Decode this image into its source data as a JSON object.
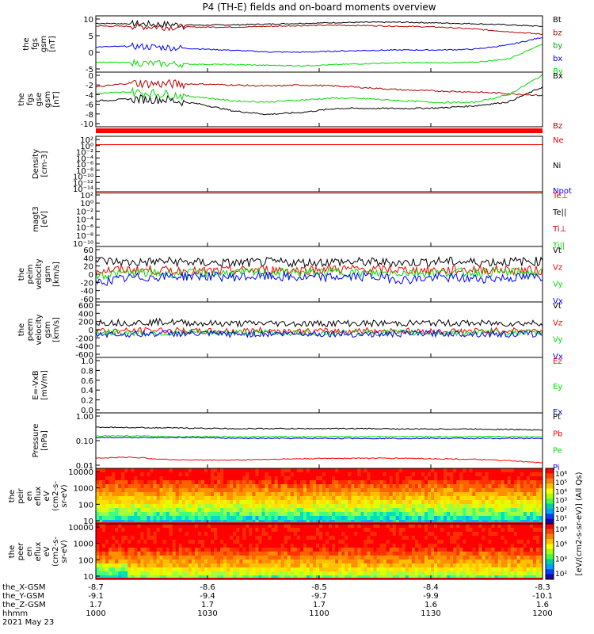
{
  "title": "P4 (TH-E) fields and on-board moments overview",
  "colors": {
    "black": "#000000",
    "red": "#ff0000",
    "darkred": "#b00000",
    "green": "#00dd00",
    "blue": "#0000ff"
  },
  "chart_data": [
    {
      "id": "fgs_gsm",
      "type": "line",
      "ylabel_lines": [
        "the",
        "fgs",
        "gsm",
        "[nT]"
      ],
      "ylim": [
        -5,
        10
      ],
      "yticks": [
        "10",
        "5",
        "0",
        "-5"
      ],
      "series": [
        {
          "name": "Bt",
          "color": "#000000",
          "values": [
            8.0,
            7.9,
            7.7,
            7.5,
            7.6,
            7.8,
            8.0,
            8.2,
            8.3,
            8.3,
            8.1,
            7.9,
            7.6,
            7.2
          ]
        },
        {
          "name": "bz",
          "color": "#b00000",
          "values": [
            7.3,
            7.2,
            7.0,
            7.0,
            7.0,
            7.2,
            7.4,
            7.5,
            7.4,
            7.2,
            7.0,
            6.5,
            5.8,
            5.1
          ]
        },
        {
          "name": "by",
          "color": "#0000ff",
          "values": [
            1.7,
            1.9,
            1.6,
            1.2,
            0.8,
            0.4,
            0.3,
            0.6,
            0.8,
            0.9,
            0.9,
            1.1,
            2.2,
            4.3
          ]
        },
        {
          "name": "bx",
          "color": "#ff0000",
          "values": [
            null
          ]
        },
        {
          "name": "By",
          "color": "#00dd00",
          "values": [
            -2.3,
            -2.5,
            -2.8,
            -2.9,
            -3.0,
            -3.2,
            -3.3,
            -3.0,
            -2.7,
            -2.5,
            -2.5,
            -2.4,
            -1.5,
            2.5
          ]
        }
      ]
    },
    {
      "id": "fgs_gse",
      "type": "line",
      "ylabel_lines": [
        "the",
        "fgs",
        "gse",
        "gsm",
        "[nT]"
      ],
      "ylim": [
        -11,
        0
      ],
      "yticks": [
        "0",
        "-2",
        "-4",
        "-6",
        "-8",
        "-10"
      ],
      "series": [
        {
          "name": "Bx",
          "color": "#000000",
          "values": [
            -5.8,
            -5.4,
            -5.5,
            -6.4,
            -7.8,
            -8.5,
            -8.1,
            -7.3,
            -7.3,
            -7.3,
            -7.2,
            -6.8,
            -6.0,
            -3.0
          ]
        },
        {
          "name": "Bz",
          "color": "#b00000",
          "values": [
            -3.0,
            -2.2,
            -2.4,
            -2.4,
            -2.6,
            -2.8,
            -2.6,
            -2.8,
            -3.2,
            -3.6,
            -3.8,
            -4.0,
            -4.3,
            -4.7
          ]
        },
        {
          "name": "By",
          "color": "#00dd00",
          "values": [
            -4.3,
            -4.0,
            -4.4,
            -5.0,
            -5.8,
            -6.0,
            -5.6,
            -5.2,
            -5.4,
            -5.8,
            -6.1,
            -6.1,
            -4.6,
            -0.6
          ]
        }
      ]
    },
    {
      "id": "mode_bar",
      "type": "bar",
      "color": "#ff0000"
    },
    {
      "id": "density",
      "type": "line",
      "ylabel_lines": [
        "Density",
        "[cm-3]"
      ],
      "scale": "log",
      "ylim": [
        1e-16,
        100.0
      ],
      "yticks": [
        "10²",
        "10⁰",
        "10⁻²",
        "10⁻⁴",
        "10⁻⁶",
        "10⁻⁸",
        "10⁻¹⁰",
        "10⁻¹²",
        "10⁻¹⁴"
      ],
      "legend": [
        {
          "name": "Ne",
          "color": "#ff0000"
        },
        {
          "name": "Ni",
          "color": "#000000"
        },
        {
          "name": "Npot",
          "color": "#0000ff"
        }
      ],
      "series": [
        {
          "name": "Ne",
          "color": "#ff0000",
          "values": [
            0.2,
            0.2,
            0.2,
            0.2,
            0.2,
            0.2,
            0.2,
            0.2,
            0.2,
            0.2,
            0.2,
            0.2,
            0.2,
            0.2
          ]
        }
      ]
    },
    {
      "id": "temperature",
      "type": "line",
      "ylabel_lines": [
        "magt3",
        "[eV]"
      ],
      "scale": "log",
      "ylim": [
        1e-10,
        100.0
      ],
      "yticks": [
        "10²",
        "10⁰",
        "10⁻²",
        "10⁻⁴",
        "10⁻⁶",
        "10⁻⁸",
        "10⁻¹⁰"
      ],
      "legend": [
        {
          "name": "Te⊥",
          "color": "#ff0000"
        },
        {
          "name": "Te||",
          "color": "#000000"
        },
        {
          "name": "Ti⊥",
          "color": "#b00000"
        },
        {
          "name": "Ti||",
          "color": "#00dd00"
        }
      ],
      "series": [
        {
          "name": "Te⊥",
          "color": "#ff0000",
          "values": [
            50,
            50,
            50,
            50,
            50,
            50,
            50,
            50,
            50,
            50,
            50,
            50,
            50,
            50
          ]
        }
      ]
    },
    {
      "id": "peim_velocity",
      "type": "line",
      "ylabel_lines": [
        "the",
        "peim",
        "velocity",
        "gsm",
        "[km/s]"
      ],
      "ylim": [
        -60,
        60
      ],
      "yticks": [
        "60",
        "40",
        "20",
        "0",
        "-20",
        "-40",
        "-60"
      ],
      "series": [
        {
          "name": "Vt",
          "color": "#000000",
          "values": [
            30,
            25,
            28,
            25,
            24,
            26,
            25,
            27,
            26,
            25,
            28,
            26,
            27,
            28
          ]
        },
        {
          "name": "Vz",
          "color": "#ff0000",
          "values": [
            8,
            10,
            8,
            6,
            8,
            10,
            9,
            12,
            10,
            9,
            8,
            10,
            9,
            8
          ]
        },
        {
          "name": "Vy",
          "color": "#00dd00",
          "values": [
            -2,
            3,
            2,
            1,
            3,
            4,
            3,
            5,
            2,
            4,
            3,
            5,
            4,
            2
          ]
        },
        {
          "name": "Vx",
          "color": "#0000ff",
          "values": [
            -18,
            -8,
            -5,
            -4,
            -6,
            -5,
            -8,
            -6,
            -5,
            -12,
            -7,
            -10,
            -8,
            -6
          ]
        }
      ]
    },
    {
      "id": "peem_velocity",
      "type": "line",
      "ylabel_lines": [
        "the",
        "peem",
        "velocity",
        "gsm",
        "[km/s]"
      ],
      "ylim": [
        -600,
        600
      ],
      "yticks": [
        "600",
        "400",
        "200",
        "0",
        "-200",
        "-400",
        "-600"
      ],
      "series": [
        {
          "name": "Vt",
          "color": "#000000",
          "values": [
            160,
            150,
            170,
            140,
            130,
            140,
            130,
            140,
            135,
            140,
            145,
            140,
            135,
            150
          ]
        },
        {
          "name": "Vz",
          "color": "#ff0000",
          "values": [
            -20,
            -30,
            -10,
            -40,
            -30,
            -20,
            -40,
            -30,
            -20,
            -30,
            -40,
            -30,
            -20,
            -30
          ]
        },
        {
          "name": "Vy",
          "color": "#00dd00",
          "values": [
            -60,
            -70,
            -80,
            -60,
            -70,
            -60,
            -70,
            -80,
            -60,
            -70,
            -60,
            -70,
            -60,
            -70
          ]
        },
        {
          "name": "Vx",
          "color": "#0000ff",
          "values": [
            -90,
            -100,
            -80,
            -90,
            -100,
            -90,
            -80,
            -90,
            -100,
            -90,
            -80,
            -90,
            -100,
            -90
          ]
        }
      ]
    },
    {
      "id": "efield",
      "type": "line",
      "ylabel_lines": [
        "E=-VxB",
        "[mV/m]"
      ],
      "ylim": [
        0,
        1
      ],
      "yticks": [
        "1.0",
        "0.8",
        "0.6",
        "0.4",
        "0.2",
        "0.0"
      ],
      "legend": [
        {
          "name": "Ez",
          "color": "#ff0000"
        },
        {
          "name": "Ey",
          "color": "#00dd00"
        },
        {
          "name": "Ex",
          "color": "#0000ff"
        }
      ],
      "series": []
    },
    {
      "id": "pressure",
      "type": "line",
      "ylabel_lines": [
        "Pressure",
        "[nPa]"
      ],
      "scale": "log",
      "ylim": [
        0.008,
        1.2
      ],
      "yticks": [
        "1.00",
        "0.10",
        "0.01"
      ],
      "series": [
        {
          "name": "Pt",
          "color": "#000000",
          "values": [
            0.33,
            0.32,
            0.31,
            0.3,
            0.29,
            0.29,
            0.29,
            0.29,
            0.29,
            0.28,
            0.28,
            0.28,
            0.27,
            0.26
          ]
        },
        {
          "name": "Pb",
          "color": "#ff0000",
          "values": [
            0.02,
            0.022,
            0.018,
            0.017,
            0.017,
            0.018,
            0.019,
            0.02,
            0.02,
            0.02,
            0.019,
            0.018,
            0.016,
            0.013
          ]
        },
        {
          "name": "Pe",
          "color": "#00dd00",
          "values": [
            0.15,
            0.15,
            0.14,
            0.14,
            0.14,
            0.14,
            0.14,
            0.14,
            0.14,
            0.14,
            0.14,
            0.14,
            0.14,
            0.14
          ]
        },
        {
          "name": "Pi",
          "color": "#0000ff",
          "values": [
            0.13,
            0.13,
            0.13,
            0.13,
            0.12,
            0.12,
            0.12,
            0.12,
            0.12,
            0.12,
            0.12,
            0.12,
            0.12,
            0.12
          ]
        }
      ]
    },
    {
      "id": "peir_spectrogram",
      "type": "heatmap",
      "ylabel_lines": [
        "the",
        "peir",
        "en",
        "eflux",
        "eV",
        "(cm2-s-",
        "sr-eV)"
      ],
      "ylim": [
        7,
        20000
      ],
      "yticks": [
        "10000",
        "1000",
        "100",
        "10"
      ]
    },
    {
      "id": "peer_spectrogram",
      "type": "heatmap",
      "ylabel_lines": [
        "the",
        "peer",
        "en",
        "eflux",
        "eV",
        "(cm2-s-",
        "sr-eV)"
      ],
      "ylim": [
        7,
        20000
      ],
      "yticks": [
        "10000",
        "1000",
        "100",
        "10"
      ]
    }
  ],
  "colorbar": {
    "label": "[eV/(cm2-s-sr-eV)] (All Qs)",
    "upper_label": "eV/(cm^2-s-sr-eV)",
    "ticks_upper": [
      "10⁶",
      "10⁵",
      "10⁴",
      "10³",
      "10²",
      "10¹"
    ],
    "ticks_lower": [
      "10⁸",
      "10⁶",
      "10⁴",
      "10²"
    ]
  },
  "x_axis": {
    "rows": [
      {
        "label": "the_X-GSM",
        "values": [
          "-8.7",
          "-8.6",
          "-8.5",
          "-8.4",
          "-8.3"
        ]
      },
      {
        "label": "the_Y-GSM",
        "values": [
          "-9.1",
          "-9.4",
          "-9.7",
          "-9.9",
          "-10.1"
        ]
      },
      {
        "label": "the_Z-GSM",
        "values": [
          "1.7",
          "1.7",
          "1.7",
          "1.6",
          "1.6"
        ]
      },
      {
        "label": "hhmm",
        "values": [
          "1000",
          "1030",
          "1100",
          "1130",
          "1200"
        ]
      }
    ],
    "date": "2021 May 23"
  }
}
